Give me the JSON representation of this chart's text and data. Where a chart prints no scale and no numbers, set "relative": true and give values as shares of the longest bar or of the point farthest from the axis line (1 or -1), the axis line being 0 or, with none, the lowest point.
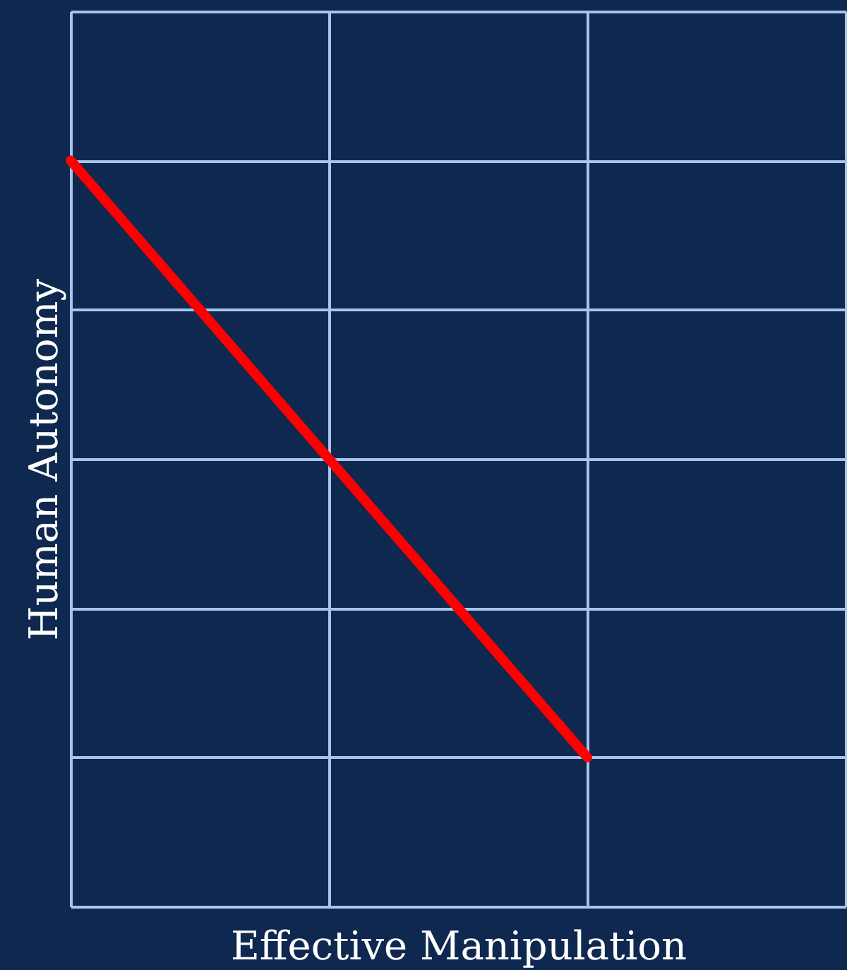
{
  "chart_data": {
    "type": "line",
    "xlabel": "Effective Manipulation",
    "ylabel": "Human Autonomy",
    "categories": [
      null,
      null,
      null,
      null
    ],
    "series": [
      {
        "color": "#ff0000",
        "values": [
          1,
          0.6,
          0.2,
          null
        ]
      }
    ],
    "relative": true,
    "grid": true,
    "line_style": "solid"
  }
}
